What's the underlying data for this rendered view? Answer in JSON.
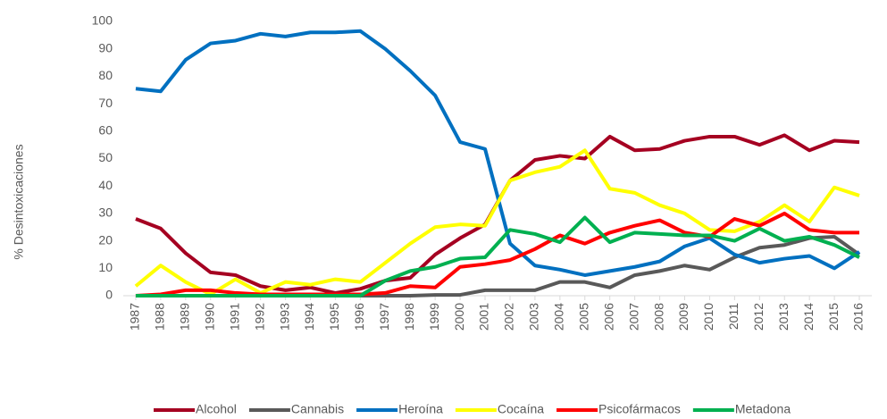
{
  "chart_data": {
    "type": "line",
    "y_label": "% Desintoxicaciones",
    "categories": [
      "1987",
      "1988",
      "1989",
      "1990",
      "1991",
      "1992",
      "1993",
      "1994",
      "1995",
      "1996",
      "1997",
      "1998",
      "1999",
      "2000",
      "2001",
      "2002",
      "2003",
      "2004",
      "2005",
      "2006",
      "2007",
      "2008",
      "2009",
      "2010",
      "2011",
      "2012",
      "2013",
      "2014",
      "2015",
      "2016"
    ],
    "series": [
      {
        "name": "Alcohol",
        "color": "#a50021",
        "values": [
          28,
          24.5,
          15.5,
          8.5,
          7.5,
          3.5,
          2,
          3,
          1,
          2.5,
          5.5,
          6.5,
          15,
          21,
          26,
          42,
          49.5,
          51,
          50,
          58,
          53,
          53.5,
          56.5,
          58,
          58,
          55,
          58.5,
          53,
          56.5,
          56
        ]
      },
      {
        "name": "Cannabis",
        "color": "#595959",
        "values": [
          0,
          0,
          0,
          0,
          0,
          0,
          0,
          0,
          0,
          0,
          0,
          0,
          0.3,
          0.3,
          2,
          2,
          2,
          5,
          5,
          3,
          7.5,
          9,
          11,
          9.5,
          14,
          17.5,
          18.5,
          21,
          21.5,
          15
        ]
      },
      {
        "name": "Heroína",
        "color": "#0070c0",
        "values": [
          75.5,
          74.5,
          86,
          92,
          93,
          95.5,
          94.5,
          96,
          96,
          96.5,
          90,
          82,
          73,
          56,
          53.5,
          19,
          11,
          9.5,
          7.5,
          9,
          10.5,
          12.5,
          18,
          21,
          15,
          12,
          13.5,
          14.5,
          10,
          16
        ]
      },
      {
        "name": "Cocaína",
        "color": "#ffff00",
        "values": [
          3.5,
          11,
          5,
          0.5,
          6,
          1,
          5,
          4,
          6,
          5,
          12,
          19,
          25,
          26,
          25.5,
          42,
          45,
          47,
          53,
          39,
          37.5,
          33,
          30,
          24,
          23.5,
          27,
          33,
          27,
          39.5,
          36.5
        ]
      },
      {
        "name": "Psicofármacos",
        "color": "#ff0000",
        "values": [
          0,
          0.5,
          2,
          2,
          1,
          0.5,
          0.5,
          0.5,
          0.5,
          0.5,
          1,
          3.5,
          3,
          10.5,
          11.5,
          13,
          17,
          22,
          19,
          23,
          25.5,
          27.5,
          23,
          21.5,
          28,
          25.5,
          30,
          24,
          23,
          23
        ]
      },
      {
        "name": "Metadona",
        "color": "#00b050",
        "values": [
          0,
          0,
          0,
          0,
          0,
          0,
          0,
          0,
          0,
          0,
          5.5,
          9,
          10.5,
          13.5,
          14,
          24,
          22.5,
          19.5,
          28.5,
          19.5,
          23,
          22.5,
          22,
          22,
          20,
          24.5,
          20,
          21.5,
          18.5,
          14
        ]
      }
    ],
    "ylim": [
      0,
      100
    ],
    "yticks": [
      0,
      10,
      20,
      30,
      40,
      50,
      60,
      70,
      80,
      90,
      100
    ],
    "grid": false,
    "legend": "bottom"
  }
}
